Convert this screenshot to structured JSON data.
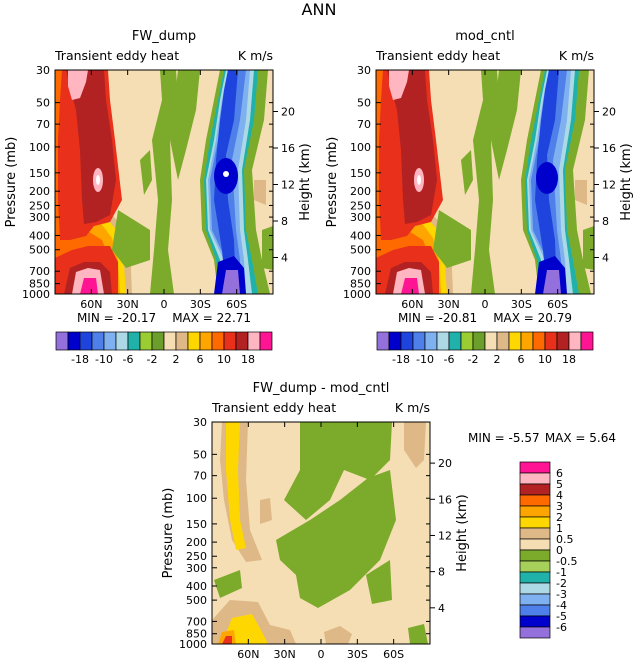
{
  "figure_title": "ANN",
  "chart_data": [
    {
      "type": "contour",
      "title": "FW_dump",
      "left_label": "Transient eddy heat",
      "right_label": "K m/s",
      "ylabel": "Pressure (mb)",
      "ylabel_right": "Height (km)",
      "x_ticks": [
        "60N",
        "30N",
        "0",
        "30S",
        "60S"
      ],
      "x_tick_lat": [
        60,
        30,
        0,
        -30,
        -60
      ],
      "xlim_lat": [
        90,
        -90
      ],
      "y_ticks": [
        "30",
        "50",
        "70",
        "100",
        "150",
        "200",
        "250",
        "300",
        "400",
        "500",
        "700",
        "850",
        "1000"
      ],
      "y_tick_values_mb": [
        30,
        50,
        70,
        100,
        150,
        200,
        250,
        300,
        400,
        500,
        700,
        850,
        1000
      ],
      "height_ticks": [
        "20",
        "16",
        "12",
        "8",
        "4"
      ],
      "height_tick_values_km": [
        20,
        16,
        12,
        8,
        4
      ],
      "min_label": "MIN = -20.17",
      "max_label": "MAX = 22.71",
      "colorbar_labels": [
        "-18",
        "-10",
        "-6",
        "-2",
        "2",
        "6",
        "10",
        "18"
      ],
      "contour_levels": [
        -18,
        -14,
        -10,
        -8,
        -6,
        -4,
        -2,
        -1,
        1,
        2,
        4,
        6,
        8,
        10,
        14,
        18
      ]
    },
    {
      "type": "contour",
      "title": "mod_cntl",
      "left_label": "Transient eddy heat",
      "right_label": "K m/s",
      "ylabel": "Pressure (mb)",
      "ylabel_right": "Height (km)",
      "x_ticks": [
        "60N",
        "30N",
        "0",
        "30S",
        "60S"
      ],
      "x_tick_lat": [
        60,
        30,
        0,
        -30,
        -60
      ],
      "xlim_lat": [
        90,
        -90
      ],
      "y_ticks": [
        "30",
        "50",
        "70",
        "100",
        "150",
        "200",
        "250",
        "300",
        "400",
        "500",
        "700",
        "850",
        "1000"
      ],
      "y_tick_values_mb": [
        30,
        50,
        70,
        100,
        150,
        200,
        250,
        300,
        400,
        500,
        700,
        850,
        1000
      ],
      "height_ticks": [
        "20",
        "16",
        "12",
        "8",
        "4"
      ],
      "height_tick_values_km": [
        20,
        16,
        12,
        8,
        4
      ],
      "min_label": "MIN = -20.81",
      "max_label": "MAX = 20.79",
      "colorbar_labels": [
        "-18",
        "-10",
        "-6",
        "-2",
        "2",
        "6",
        "10",
        "18"
      ],
      "contour_levels": [
        -18,
        -14,
        -10,
        -8,
        -6,
        -4,
        -2,
        -1,
        1,
        2,
        4,
        6,
        8,
        10,
        14,
        18
      ]
    },
    {
      "type": "contour",
      "title": "FW_dump - mod_cntl",
      "left_label": "Transient eddy heat",
      "right_label": "K m/s",
      "ylabel": "Pressure (mb)",
      "ylabel_right": "Height (km)",
      "x_ticks": [
        "60N",
        "30N",
        "0",
        "30S",
        "60S"
      ],
      "x_tick_lat": [
        60,
        30,
        0,
        -30,
        -60
      ],
      "xlim_lat": [
        90,
        -90
      ],
      "y_ticks": [
        "30",
        "50",
        "70",
        "100",
        "150",
        "200",
        "250",
        "300",
        "400",
        "500",
        "700",
        "850",
        "1000"
      ],
      "y_tick_values_mb": [
        30,
        50,
        70,
        100,
        150,
        200,
        250,
        300,
        400,
        500,
        700,
        850,
        1000
      ],
      "height_ticks": [
        "20",
        "16",
        "12",
        "8",
        "4"
      ],
      "height_tick_values_km": [
        20,
        16,
        12,
        8,
        4
      ],
      "min_label": "MIN = -5.57",
      "max_label": "MAX = 5.64",
      "colorbar_labels": [
        "6",
        "5",
        "4",
        "3",
        "2",
        "1",
        "0.5",
        "0",
        "-0.5",
        "-1",
        "-2",
        "-3",
        "-4",
        "-5",
        "-6"
      ],
      "contour_levels": [
        6,
        5,
        4,
        3,
        2,
        1,
        0.5,
        0,
        -0.5,
        -1,
        -2,
        -3,
        -4,
        -5,
        -6
      ]
    }
  ],
  "palette": [
    "#9370db",
    "#0000cd",
    "#1e44dd",
    "#4f7fe8",
    "#7fb1f0",
    "#add8e6",
    "#20b2aa",
    "#9acd32",
    "#6b9e2a",
    "#f5deb3",
    "#deb887",
    "#ffd700",
    "#ffa500",
    "#ff6a00",
    "#e8301a",
    "#b22222",
    "#ffb6c1",
    "#ff1493"
  ],
  "colors": {
    "beige": "#f5deb3",
    "tan": "#deb887",
    "green": "#7cab2c",
    "lightgreen": "#a6d05a",
    "teal": "#20b2aa",
    "lightblue": "#add8e6",
    "skyblue": "#7fb1f0",
    "midblue": "#4f7fe8",
    "blue": "#1e44dd",
    "darkblue": "#0000cd",
    "purple": "#9370db",
    "yellow": "#ffd700",
    "orange": "#ffa500",
    "darkorange": "#ff6a00",
    "red": "#e8301a",
    "darkred": "#b22222",
    "pink": "#ffb6c1",
    "magenta": "#ff1493",
    "white": "#ffffff"
  }
}
